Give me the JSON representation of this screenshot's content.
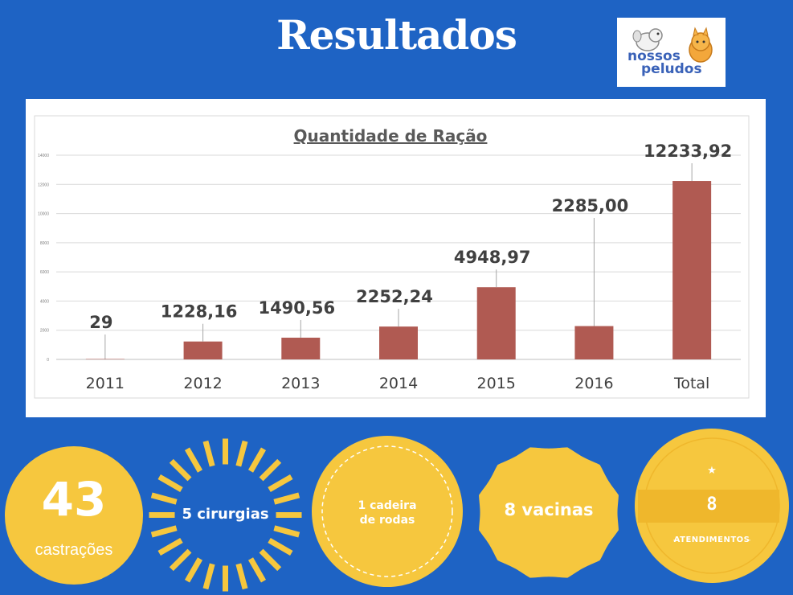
{
  "header": {
    "title": "Resultados"
  },
  "logo": {
    "line1": "nossos",
    "line2": "peludos"
  },
  "chart_data": {
    "type": "bar",
    "title": "Quantidade de Ração",
    "categories": [
      "2011",
      "2012",
      "2013",
      "2014",
      "2015",
      "2016",
      "Total"
    ],
    "values": [
      29,
      1228.16,
      1490.56,
      2252.24,
      4948.97,
      2285.0,
      12233.92
    ],
    "data_labels": [
      "29",
      "1228,16",
      "1490,56",
      "2252,24",
      "4948,97",
      "2285,00",
      "12233,92"
    ],
    "ylim": [
      0,
      14000
    ],
    "yticks": [
      0,
      2000,
      4000,
      6000,
      8000,
      10000,
      12000,
      14000
    ],
    "ytick_labels": [
      "0",
      "2000",
      "4000",
      "6000",
      "8000",
      "10000",
      "12000",
      "14000"
    ],
    "grid": true,
    "bar_color": "#b05a52"
  },
  "badges": {
    "castracoes": {
      "number": "43",
      "label": "castrações"
    },
    "cirurgias": {
      "label": "5 cirurgias"
    },
    "cadeira": {
      "line1": "1 cadeira",
      "line2": "de rodas"
    },
    "vacinas": {
      "label": "8 vacinas"
    },
    "atendimentos": {
      "star": "★",
      "number": "8",
      "label": "ATENDIMENTOS"
    }
  },
  "colors": {
    "background": "#1e63c4",
    "badge_yellow": "#f6c73e",
    "badge_dark_yellow": "#efb72c"
  }
}
